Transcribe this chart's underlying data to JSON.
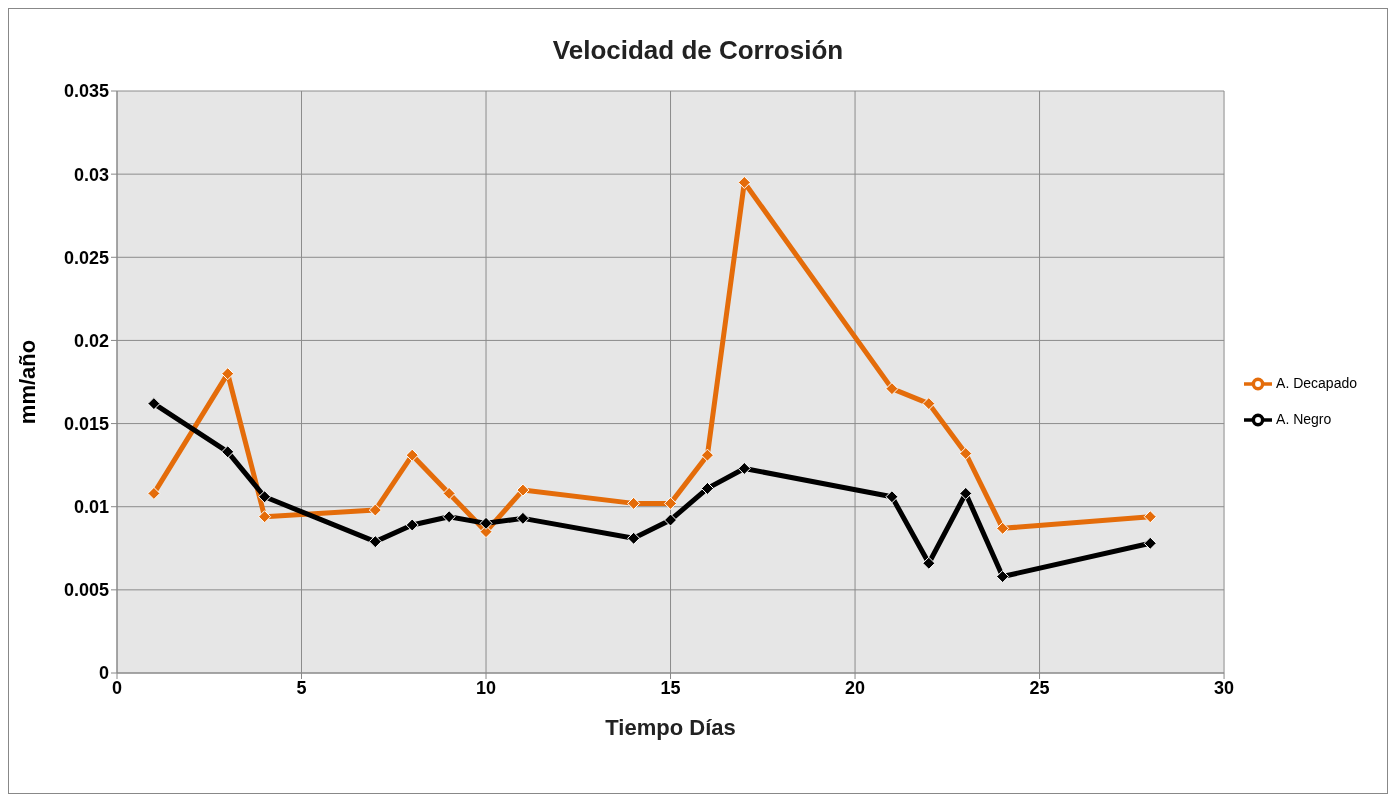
{
  "chart_data": {
    "type": "line",
    "title": "Velocidad de Corrosión",
    "xlabel": "Tiempo Días",
    "ylabel": "mm/año",
    "x": [
      1,
      3,
      4,
      7,
      8,
      9,
      10,
      11,
      14,
      15,
      16,
      17,
      21,
      22,
      23,
      24,
      28
    ],
    "series": [
      {
        "name": "A. Decapado",
        "color": "#e46c0a",
        "values": [
          0.0108,
          0.018,
          0.0094,
          0.0098,
          0.0131,
          0.0108,
          0.0085,
          0.011,
          0.0102,
          0.0102,
          0.0131,
          0.0295,
          0.0171,
          0.0162,
          0.0132,
          0.0087,
          0.0094
        ]
      },
      {
        "name": "A. Negro",
        "color": "#000000",
        "values": [
          0.0162,
          0.0133,
          0.0106,
          0.0079,
          0.0089,
          0.0094,
          0.009,
          0.0093,
          0.0081,
          0.0092,
          0.0111,
          0.0123,
          0.0106,
          0.0066,
          0.0108,
          0.0058,
          0.0078
        ]
      }
    ],
    "xlim": [
      0,
      30
    ],
    "xticks": [
      0,
      5,
      10,
      15,
      20,
      25,
      30
    ],
    "ylim": [
      0,
      0.035
    ],
    "yticks": [
      0,
      0.005,
      0.01,
      0.015,
      0.02,
      0.025,
      0.03,
      0.035
    ],
    "grid": true,
    "legend": "right",
    "marker": "diamond",
    "line_style": "solid"
  }
}
